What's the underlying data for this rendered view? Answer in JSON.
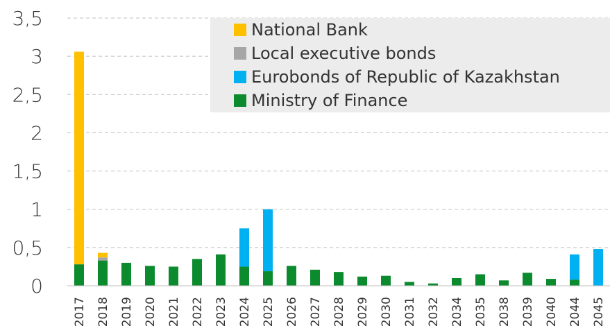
{
  "chart_data": {
    "type": "bar",
    "stacked": true,
    "categories": [
      "2017",
      "2018",
      "2019",
      "2020",
      "2021",
      "2022",
      "2023",
      "2024",
      "2025",
      "2026",
      "2027",
      "2028",
      "2029",
      "2030",
      "2031",
      "2032",
      "2034",
      "2035",
      "2038",
      "2039",
      "2040",
      "2044",
      "2045"
    ],
    "series": [
      {
        "name": "Ministry of Finance",
        "color": "#0b8a2e",
        "values": [
          0.28,
          0.33,
          0.3,
          0.26,
          0.25,
          0.35,
          0.41,
          0.25,
          0.19,
          0.26,
          0.21,
          0.18,
          0.12,
          0.13,
          0.05,
          0.03,
          0.1,
          0.15,
          0.07,
          0.17,
          0.09,
          0.08,
          0.0
        ]
      },
      {
        "name": "Eurobonds of Republic of Kazakhstan",
        "color": "#00b0f0",
        "values": [
          0,
          0,
          0,
          0,
          0,
          0,
          0,
          0.5,
          0.81,
          0,
          0,
          0,
          0,
          0,
          0,
          0,
          0,
          0,
          0,
          0,
          0,
          0.33,
          0.48
        ]
      },
      {
        "name": "Local executive bonds",
        "color": "#a6a6a6",
        "values": [
          0,
          0.04,
          0,
          0,
          0,
          0,
          0,
          0,
          0,
          0,
          0,
          0,
          0,
          0,
          0,
          0,
          0,
          0,
          0,
          0,
          0,
          0,
          0
        ]
      },
      {
        "name": "National Bank",
        "color": "#ffc000",
        "values": [
          2.78,
          0.06,
          0,
          0,
          0,
          0,
          0,
          0,
          0,
          0,
          0,
          0,
          0,
          0,
          0,
          0,
          0,
          0,
          0,
          0,
          0,
          0,
          0
        ]
      }
    ],
    "legend_order": [
      "National Bank",
      "Local executive bonds",
      "Eurobonds of Republic of Kazakhstan",
      "Ministry of Finance"
    ],
    "legend_position": "top-right",
    "yticks": [
      "0",
      "0,5",
      "1",
      "1,5",
      "2",
      "2,5",
      "3",
      "3,5"
    ],
    "ylim": [
      0,
      3.5
    ],
    "grid": true,
    "title": "",
    "xlabel": "",
    "ylabel": ""
  }
}
